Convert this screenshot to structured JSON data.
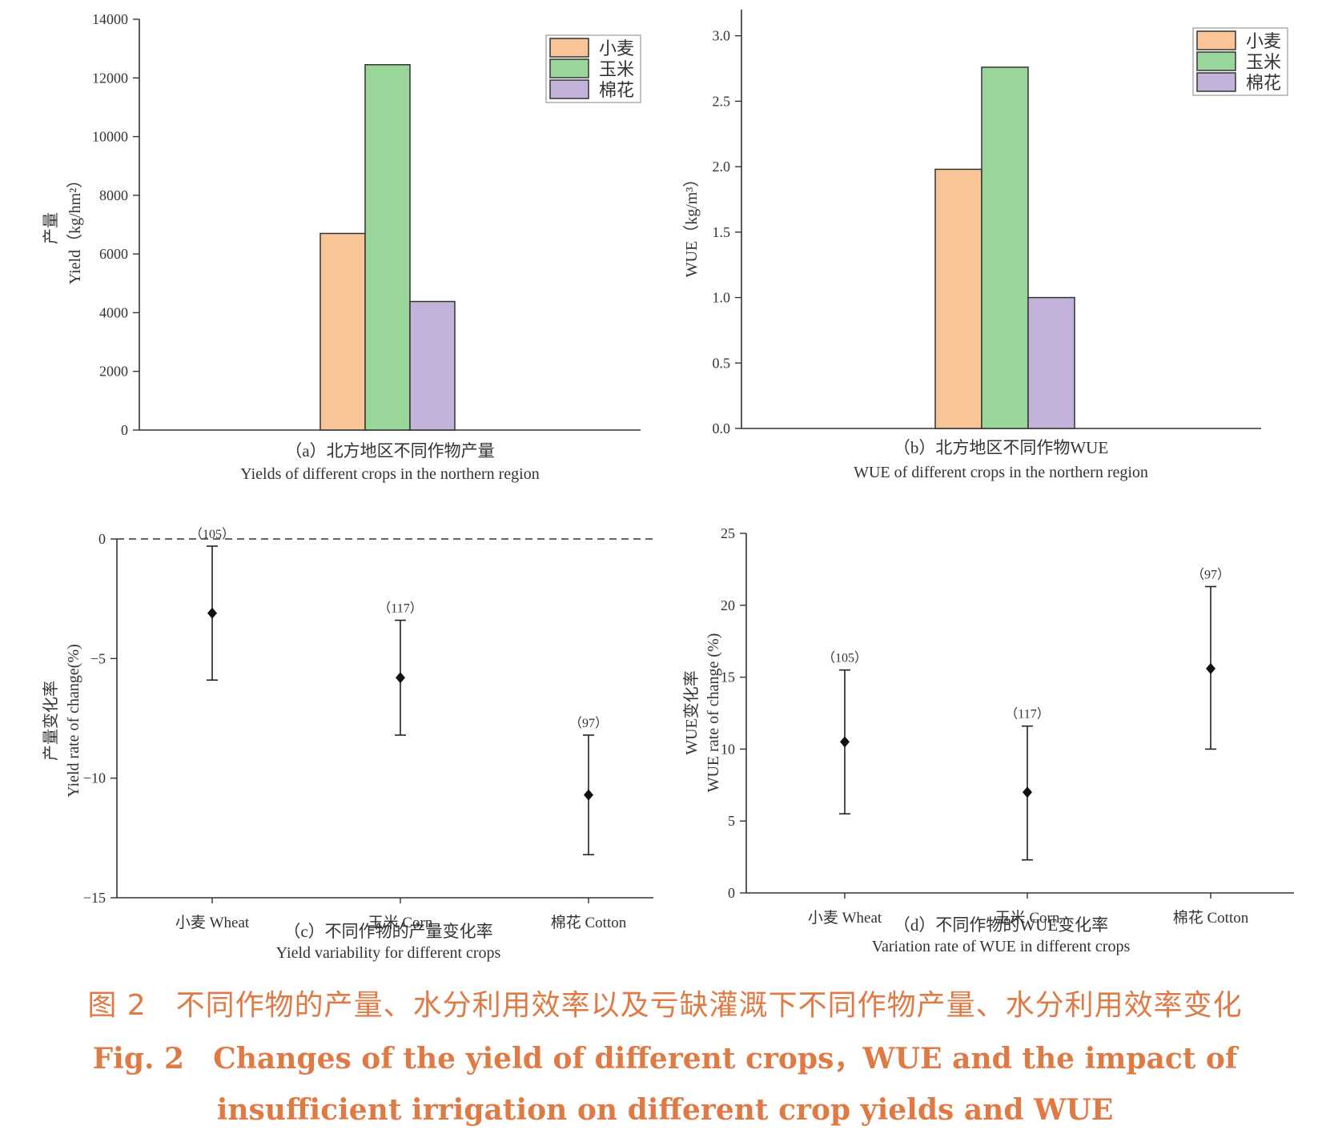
{
  "legend": [
    {
      "label": "小麦",
      "color": "#f9c596"
    },
    {
      "label": "玉米",
      "color": "#9ad69a"
    },
    {
      "label": "棉花",
      "color": "#c3b3db"
    }
  ],
  "chart_data": [
    {
      "id": "a",
      "type": "bar",
      "categories": [
        "小麦",
        "玉米",
        "棉花"
      ],
      "values": [
        6700,
        12450,
        4380
      ],
      "ylim": [
        0,
        14000
      ],
      "yticks": [
        "0",
        "2000",
        "4000",
        "6000",
        "8000",
        "10000",
        "12000",
        "14000"
      ],
      "ylabel_cn": "产量",
      "ylabel_en": "Yield（kg/hm²）",
      "caption_cn": "（a）北方地区不同作物产量",
      "caption_en": "Yields of different crops in the northern region",
      "legend": "top-right"
    },
    {
      "id": "b",
      "type": "bar",
      "categories": [
        "小麦",
        "玉米",
        "棉花"
      ],
      "values": [
        1.98,
        2.76,
        1.0
      ],
      "ylim": [
        0,
        3.2
      ],
      "yticks": [
        "0.0",
        "0.5",
        "1.0",
        "1.5",
        "2.0",
        "2.5",
        "3.0"
      ],
      "ylabel_en": "WUE（kg/m³）",
      "caption_cn": "（b）北方地区不同作物WUE",
      "caption_en": "WUE of different crops in the northern region",
      "legend": "top-right"
    },
    {
      "id": "c",
      "type": "scatter",
      "categories": [
        "小麦 Wheat",
        "玉米 Corn",
        "棉花 Cotton"
      ],
      "values": [
        -3.1,
        -5.8,
        -10.7
      ],
      "lower": [
        -5.9,
        -8.2,
        -13.2
      ],
      "upper": [
        -0.3,
        -3.4,
        -8.2
      ],
      "n_labels": [
        "（105）",
        "（117）",
        "（97）"
      ],
      "ylim": [
        -15,
        0
      ],
      "yticks": [
        "−15",
        "−10",
        "−5",
        "0"
      ],
      "reference_line": 0,
      "ylabel_cn": "产量变化率",
      "ylabel_en": "Yield rate of change(%)",
      "caption_cn": "（c）不同作物的产量变化率",
      "caption_en": "Yield variability for different crops"
    },
    {
      "id": "d",
      "type": "scatter",
      "categories": [
        "小麦 Wheat",
        "玉米 Corn",
        "棉花 Cotton"
      ],
      "values": [
        10.5,
        7.0,
        15.6
      ],
      "lower": [
        5.5,
        2.3,
        10.0
      ],
      "upper": [
        15.5,
        11.6,
        21.3
      ],
      "n_labels": [
        "（105）",
        "（117）",
        "（97）"
      ],
      "ylim": [
        0,
        25
      ],
      "yticks": [
        "0",
        "5",
        "10",
        "15",
        "20",
        "25"
      ],
      "ylabel_cn": "WUE变化率",
      "ylabel_en": "WUE rate of change (%)",
      "caption_cn": "（d）不同作物的WUE变化率",
      "caption_en": "Variation rate of WUE in different crops"
    }
  ],
  "figure_caption": {
    "cn": "图 2　不同作物的产量、水分利用效率以及亏缺灌溉下不同作物产量、水分利用效率变化",
    "en": "Fig. 2　Changes of the yield of different crops，WUE and the impact of insufficient irrigation on different crop yields and WUE"
  }
}
